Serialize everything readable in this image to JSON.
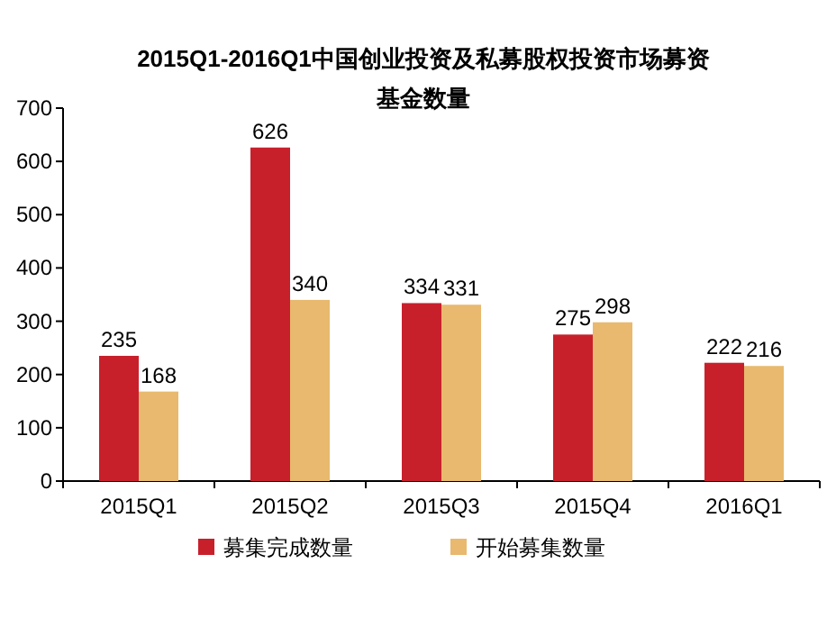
{
  "chart_data": {
    "type": "bar",
    "title": "2015Q1-2016Q1中国创业投资及私募股权投资市场募资基金数量",
    "categories": [
      "2015Q1",
      "2015Q2",
      "2015Q3",
      "2015Q4",
      "2016Q1"
    ],
    "series": [
      {
        "name": "募集完成数量",
        "color": "#c8202b",
        "values": [
          235,
          626,
          334,
          275,
          222
        ]
      },
      {
        "name": "开始募集数量",
        "color": "#e8b96e",
        "values": [
          168,
          340,
          331,
          298,
          216
        ]
      }
    ],
    "ylim": [
      0,
      700
    ],
    "yticks": [
      0,
      100,
      200,
      300,
      400,
      500,
      600,
      700
    ],
    "data_labels": true,
    "grid": false,
    "legend": "bottom"
  }
}
